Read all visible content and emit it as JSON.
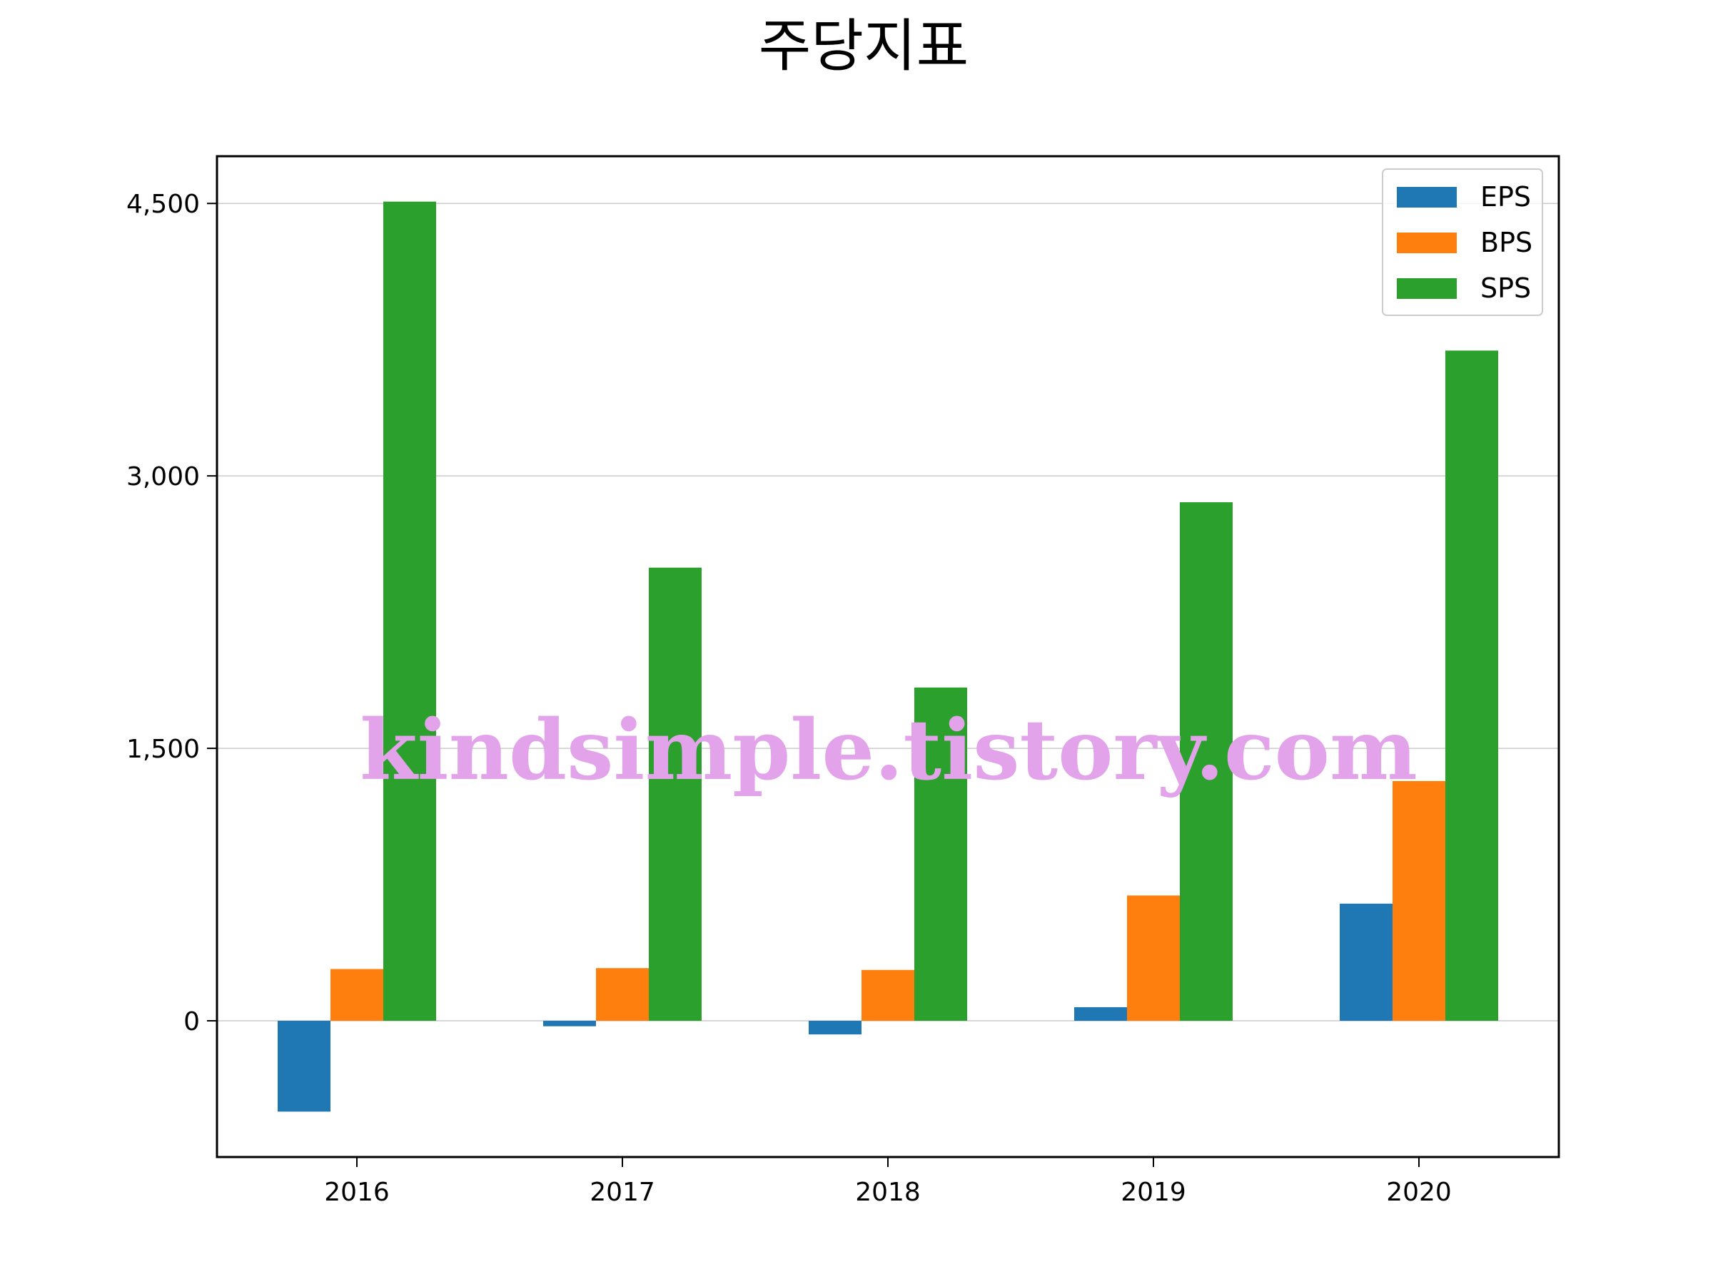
{
  "chart_data": {
    "type": "bar",
    "title": "주당지표",
    "xlabel": "",
    "ylabel": "",
    "categories": [
      "2016",
      "2017",
      "2018",
      "2019",
      "2020"
    ],
    "series": [
      {
        "name": "EPS",
        "color": "#1f77b4",
        "values": [
          -500,
          -30,
          -75,
          75,
          645
        ]
      },
      {
        "name": "BPS",
        "color": "#ff7f0e",
        "values": [
          285,
          290,
          280,
          690,
          1320
        ]
      },
      {
        "name": "SPS",
        "color": "#2ca02c",
        "values": [
          4510,
          2495,
          1835,
          2855,
          3690
        ]
      }
    ],
    "ylim": [
      -750,
      4760
    ],
    "yticks": [
      0,
      1500,
      3000,
      4500
    ],
    "ytick_labels": [
      "0",
      "1,500",
      "3,000",
      "4,500"
    ],
    "grid": "y",
    "legend": "top-right"
  },
  "watermark": "kindsimple.tistory.com"
}
